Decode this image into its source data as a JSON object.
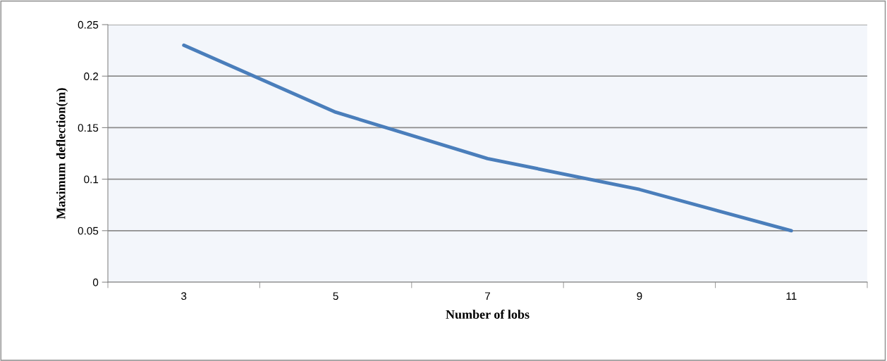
{
  "chart_data": {
    "type": "line",
    "xlabel": "Number of lobs",
    "ylabel": "Maximum deflection(m)",
    "categories": [
      "3",
      "5",
      "7",
      "9",
      "11"
    ],
    "series": [
      {
        "color": "#4a7ebb",
        "values": [
          0.23,
          0.165,
          0.12,
          0.09,
          0.05
        ]
      }
    ],
    "ylim": [
      0,
      0.25
    ],
    "yticks": [
      0,
      0.05,
      0.1,
      0.15,
      0.2,
      0.25
    ],
    "grid": "y",
    "marker": "none",
    "line_style": "solid"
  }
}
